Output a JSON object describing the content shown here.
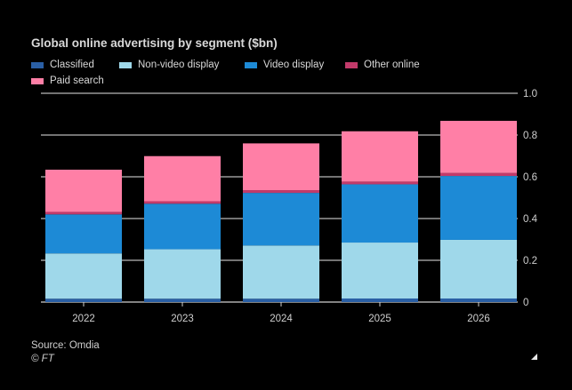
{
  "chart_data": {
    "type": "bar",
    "stacked": true,
    "title": "Global online advertising by segment ($bn)",
    "categories": [
      "2022",
      "2023",
      "2024",
      "2025",
      "2026"
    ],
    "series": [
      {
        "name": "Classified",
        "color": "#2a5fa5",
        "values": [
          0.016,
          0.016,
          0.016,
          0.017,
          0.017
        ]
      },
      {
        "name": "Non-video display",
        "color": "#9fd8ea",
        "values": [
          0.217,
          0.237,
          0.255,
          0.268,
          0.281
        ]
      },
      {
        "name": "Video display",
        "color": "#1d8ad6",
        "values": [
          0.187,
          0.218,
          0.252,
          0.279,
          0.306
        ]
      },
      {
        "name": "Other online",
        "color": "#c23a6a",
        "values": [
          0.012,
          0.012,
          0.013,
          0.013,
          0.014
        ]
      },
      {
        "name": "Paid search",
        "color": "#ff7fa6",
        "values": [
          0.202,
          0.216,
          0.224,
          0.241,
          0.25
        ]
      }
    ],
    "yticks": [
      "0",
      "0.2",
      "0.4",
      "0.6",
      "0.8",
      "1.0"
    ],
    "ylim": [
      0,
      1.0
    ],
    "grid": true,
    "legend_position": "top-left"
  },
  "source": "Source: Omdia",
  "credit": "© FT",
  "colors": {
    "background": "#000000",
    "gridline": "#e6e6e6",
    "text": "#d8d8d8"
  }
}
